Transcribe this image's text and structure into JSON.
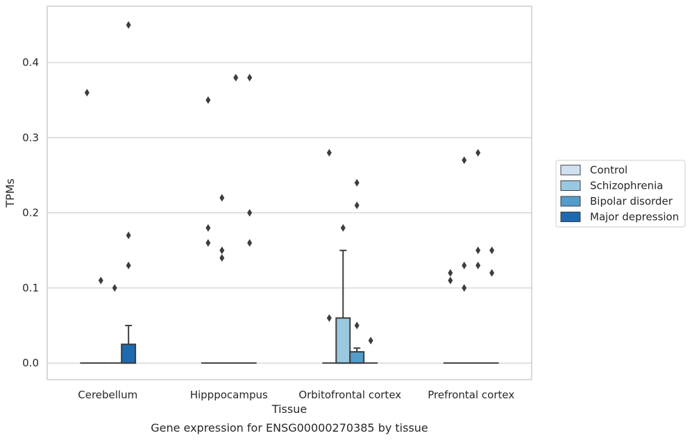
{
  "chart_data": {
    "type": "box",
    "title": "",
    "caption": "Gene expression for ENSG00000270385 by tissue",
    "xlabel": "Tissue",
    "ylabel": "TPMs",
    "ylim": [
      -0.022,
      0.475
    ],
    "yticks": [
      "0.0",
      "0.1",
      "0.2",
      "0.3",
      "0.4"
    ],
    "ytick_values": [
      0.0,
      0.1,
      0.2,
      0.3,
      0.4
    ],
    "grid": true,
    "legend_position": "right",
    "categories": [
      "Cerebellum",
      "Hipppocampus",
      "Orbitofrontal cortex",
      "Prefrontal cortex"
    ],
    "series": [
      {
        "name": "Control",
        "color": "#d0e2f2",
        "boxes": [
          {
            "q1": 0,
            "median": 0,
            "q3": 0,
            "whisker_low": 0,
            "whisker_high": 0,
            "outliers": [
              0.36
            ]
          },
          {
            "q1": 0,
            "median": 0,
            "q3": 0,
            "whisker_low": 0,
            "whisker_high": 0,
            "outliers": [
              0.35,
              0.18,
              0.16
            ]
          },
          {
            "q1": 0,
            "median": 0,
            "q3": 0,
            "whisker_low": 0,
            "whisker_high": 0,
            "outliers": [
              0.28,
              0.06
            ]
          },
          {
            "q1": 0,
            "median": 0,
            "q3": 0,
            "whisker_low": 0,
            "whisker_high": 0,
            "outliers": [
              0.12,
              0.11
            ]
          }
        ]
      },
      {
        "name": "Schizophrenia",
        "color": "#9ac8e0",
        "boxes": [
          {
            "q1": 0,
            "median": 0,
            "q3": 0,
            "whisker_low": 0,
            "whisker_high": 0,
            "outliers": [
              0.11
            ]
          },
          {
            "q1": 0,
            "median": 0,
            "q3": 0,
            "whisker_low": 0,
            "whisker_high": 0,
            "outliers": [
              0.22,
              0.15,
              0.14
            ]
          },
          {
            "q1": 0,
            "median": 0,
            "q3": 0.06,
            "whisker_low": 0,
            "whisker_high": 0.15,
            "outliers": [
              0.18
            ]
          },
          {
            "q1": 0,
            "median": 0,
            "q3": 0,
            "whisker_low": 0,
            "whisker_high": 0,
            "outliers": [
              0.27,
              0.13,
              0.1
            ]
          }
        ]
      },
      {
        "name": "Bipolar disorder",
        "color": "#529dcc",
        "boxes": [
          {
            "q1": 0,
            "median": 0,
            "q3": 0,
            "whisker_low": 0,
            "whisker_high": 0,
            "outliers": [
              0.1
            ]
          },
          {
            "q1": 0,
            "median": 0,
            "q3": 0,
            "whisker_low": 0,
            "whisker_high": 0,
            "outliers": [
              0.38
            ]
          },
          {
            "q1": 0,
            "median": 0,
            "q3": 0.015,
            "whisker_low": 0,
            "whisker_high": 0.02,
            "outliers": [
              0.24,
              0.21,
              0.05
            ]
          },
          {
            "q1": 0,
            "median": 0,
            "q3": 0,
            "whisker_low": 0,
            "whisker_high": 0,
            "outliers": [
              0.28,
              0.15,
              0.13
            ]
          }
        ]
      },
      {
        "name": "Major depression",
        "color": "#1c6aaf",
        "boxes": [
          {
            "q1": 0,
            "median": 0,
            "q3": 0.025,
            "whisker_low": 0,
            "whisker_high": 0.05,
            "outliers": [
              0.45,
              0.17,
              0.13
            ]
          },
          {
            "q1": 0,
            "median": 0,
            "q3": 0,
            "whisker_low": 0,
            "whisker_high": 0,
            "outliers": [
              0.38,
              0.2,
              0.16
            ]
          },
          {
            "q1": 0,
            "median": 0,
            "q3": 0,
            "whisker_low": 0,
            "whisker_high": 0,
            "outliers": [
              0.03
            ]
          },
          {
            "q1": 0,
            "median": 0,
            "q3": 0,
            "whisker_low": 0,
            "whisker_high": 0,
            "outliers": [
              0.15,
              0.12
            ]
          }
        ]
      }
    ]
  }
}
